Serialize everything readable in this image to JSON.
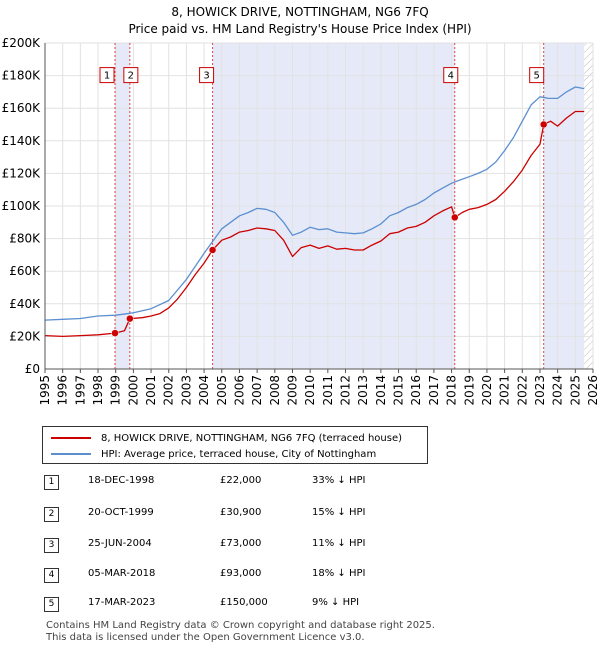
{
  "chart_data": {
    "type": "line",
    "title": "8, HOWICK DRIVE, NOTTINGHAM, NG6 7FQ",
    "subtitle": "Price paid vs. HM Land Registry's House Price Index (HPI)",
    "xlim": [
      1995,
      2026
    ],
    "ylim": [
      0,
      200000
    ],
    "x_ticks": [
      "1995",
      "1996",
      "1997",
      "1998",
      "1999",
      "2000",
      "2001",
      "2002",
      "2003",
      "2004",
      "2005",
      "2006",
      "2007",
      "2008",
      "2009",
      "2010",
      "2011",
      "2012",
      "2013",
      "2014",
      "2015",
      "2016",
      "2017",
      "2018",
      "2019",
      "2020",
      "2021",
      "2022",
      "2023",
      "2024",
      "2025",
      "2026"
    ],
    "y_ticks": [
      {
        "value": 0,
        "label": "£0"
      },
      {
        "value": 20000,
        "label": "£20K"
      },
      {
        "value": 40000,
        "label": "£40K"
      },
      {
        "value": 60000,
        "label": "£60K"
      },
      {
        "value": 80000,
        "label": "£80K"
      },
      {
        "value": 100000,
        "label": "£100K"
      },
      {
        "value": 120000,
        "label": "£120K"
      },
      {
        "value": 140000,
        "label": "£140K"
      },
      {
        "value": 160000,
        "label": "£160K"
      },
      {
        "value": 180000,
        "label": "£180K"
      },
      {
        "value": 200000,
        "label": "£200K"
      }
    ],
    "series": [
      {
        "name": "8, HOWICK DRIVE, NOTTINGHAM, NG6 7FQ (terraced house)",
        "color": "#cc0000",
        "points": [
          [
            1995.0,
            20500
          ],
          [
            1996.0,
            20000
          ],
          [
            1997.0,
            20500
          ],
          [
            1998.0,
            21000
          ],
          [
            1998.96,
            22000
          ],
          [
            1999.5,
            23500
          ],
          [
            1999.8,
            30900
          ],
          [
            2000.5,
            31500
          ],
          [
            2001.0,
            32500
          ],
          [
            2001.5,
            34000
          ],
          [
            2002.0,
            37500
          ],
          [
            2002.5,
            43000
          ],
          [
            2003.0,
            50000
          ],
          [
            2003.5,
            58000
          ],
          [
            2004.0,
            65000
          ],
          [
            2004.48,
            73000
          ],
          [
            2005.0,
            79000
          ],
          [
            2005.5,
            81000
          ],
          [
            2006.0,
            84000
          ],
          [
            2006.5,
            85000
          ],
          [
            2007.0,
            86500
          ],
          [
            2007.5,
            86000
          ],
          [
            2008.0,
            85000
          ],
          [
            2008.5,
            79000
          ],
          [
            2009.0,
            69000
          ],
          [
            2009.5,
            74500
          ],
          [
            2010.0,
            76000
          ],
          [
            2010.5,
            74000
          ],
          [
            2011.0,
            75500
          ],
          [
            2011.5,
            73500
          ],
          [
            2012.0,
            74000
          ],
          [
            2012.5,
            73000
          ],
          [
            2013.0,
            73000
          ],
          [
            2013.5,
            76000
          ],
          [
            2014.0,
            78500
          ],
          [
            2014.5,
            83000
          ],
          [
            2015.0,
            84000
          ],
          [
            2015.5,
            86500
          ],
          [
            2016.0,
            87500
          ],
          [
            2016.5,
            90000
          ],
          [
            2017.0,
            94000
          ],
          [
            2017.5,
            97000
          ],
          [
            2018.0,
            99500
          ],
          [
            2018.18,
            93000
          ],
          [
            2018.6,
            96000
          ],
          [
            2019.0,
            98000
          ],
          [
            2019.5,
            99000
          ],
          [
            2020.0,
            101000
          ],
          [
            2020.5,
            104000
          ],
          [
            2021.0,
            109000
          ],
          [
            2021.5,
            115000
          ],
          [
            2022.0,
            122000
          ],
          [
            2022.5,
            131000
          ],
          [
            2023.0,
            138000
          ],
          [
            2023.21,
            150000
          ],
          [
            2023.6,
            152000
          ],
          [
            2024.0,
            149000
          ],
          [
            2024.5,
            154000
          ],
          [
            2025.0,
            158000
          ],
          [
            2025.5,
            158000
          ]
        ]
      },
      {
        "name": "HPI: Average price, terraced house, City of Nottingham",
        "color": "#5b8fd0",
        "points": [
          [
            1995.0,
            30000
          ],
          [
            1996.0,
            30500
          ],
          [
            1997.0,
            31000
          ],
          [
            1998.0,
            32500
          ],
          [
            1999.0,
            33000
          ],
          [
            2000.0,
            34500
          ],
          [
            2001.0,
            37000
          ],
          [
            2002.0,
            42000
          ],
          [
            2003.0,
            55000
          ],
          [
            2004.0,
            71000
          ],
          [
            2005.0,
            86000
          ],
          [
            2005.5,
            90000
          ],
          [
            2006.0,
            94000
          ],
          [
            2006.5,
            96000
          ],
          [
            2007.0,
            98500
          ],
          [
            2007.5,
            98000
          ],
          [
            2008.0,
            96000
          ],
          [
            2008.5,
            90000
          ],
          [
            2009.0,
            82000
          ],
          [
            2009.5,
            84000
          ],
          [
            2010.0,
            87000
          ],
          [
            2010.5,
            85500
          ],
          [
            2011.0,
            86000
          ],
          [
            2011.5,
            84000
          ],
          [
            2012.0,
            83500
          ],
          [
            2012.5,
            83000
          ],
          [
            2013.0,
            83500
          ],
          [
            2013.5,
            86000
          ],
          [
            2014.0,
            89000
          ],
          [
            2014.5,
            94000
          ],
          [
            2015.0,
            96000
          ],
          [
            2015.5,
            99000
          ],
          [
            2016.0,
            101000
          ],
          [
            2016.5,
            104000
          ],
          [
            2017.0,
            108000
          ],
          [
            2017.5,
            111000
          ],
          [
            2018.0,
            114000
          ],
          [
            2018.5,
            116000
          ],
          [
            2019.0,
            118000
          ],
          [
            2019.5,
            120000
          ],
          [
            2020.0,
            122500
          ],
          [
            2020.5,
            127000
          ],
          [
            2021.0,
            134000
          ],
          [
            2021.5,
            142000
          ],
          [
            2022.0,
            152000
          ],
          [
            2022.5,
            162000
          ],
          [
            2023.0,
            167000
          ],
          [
            2023.5,
            166000
          ],
          [
            2024.0,
            166000
          ],
          [
            2024.5,
            170000
          ],
          [
            2025.0,
            173000
          ],
          [
            2025.5,
            172000
          ]
        ]
      }
    ],
    "sales": [
      {
        "label": "1",
        "x": 1998.96,
        "value": 22000
      },
      {
        "label": "2",
        "x": 1999.8,
        "value": 30900
      },
      {
        "label": "3",
        "x": 2004.48,
        "value": 73000
      },
      {
        "label": "4",
        "x": 2018.18,
        "value": 93000
      },
      {
        "label": "5",
        "x": 2023.21,
        "value": 150000
      }
    ],
    "shaded_ranges": [
      [
        1998.96,
        1999.8
      ],
      [
        2004.48,
        2018.18
      ],
      [
        2023.21,
        2025.5
      ]
    ],
    "forecast_start": 2025.5
  },
  "legend": {
    "property": "8, HOWICK DRIVE, NOTTINGHAM, NG6 7FQ (terraced house)",
    "hpi": "HPI: Average price, terraced house, City of Nottingham"
  },
  "transactions": [
    {
      "num": "1",
      "date": "18-DEC-1998",
      "price": "£22,000",
      "hpi": "33% ↓ HPI"
    },
    {
      "num": "2",
      "date": "20-OCT-1999",
      "price": "£30,900",
      "hpi": "15% ↓ HPI"
    },
    {
      "num": "3",
      "date": "25-JUN-2004",
      "price": "£73,000",
      "hpi": "11% ↓ HPI"
    },
    {
      "num": "4",
      "date": "05-MAR-2018",
      "price": "£93,000",
      "hpi": "18% ↓ HPI"
    },
    {
      "num": "5",
      "date": "17-MAR-2023",
      "price": "£150,000",
      "hpi": "9% ↓ HPI"
    }
  ],
  "footer": {
    "line1": "Contains HM Land Registry data © Crown copyright and database right 2025.",
    "line2": "This data is licensed under the Open Government Licence v3.0."
  }
}
